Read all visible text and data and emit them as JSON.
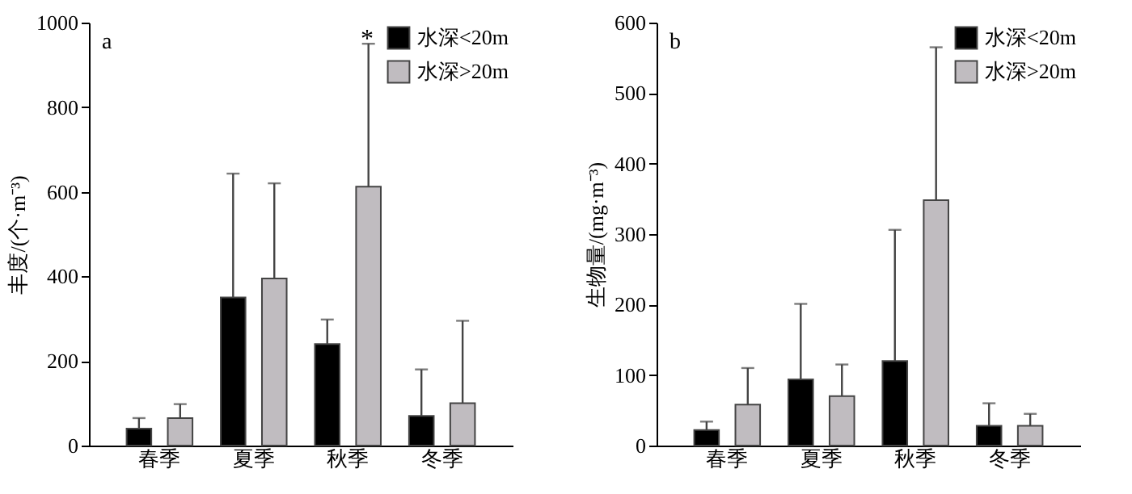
{
  "chart_data": [
    {
      "type": "bar",
      "title": "a",
      "categories": [
        "春季",
        "夏季",
        "秋季",
        "冬季"
      ],
      "ylabel": "丰度/(个·m⁻³)",
      "ylim": [
        0,
        1000
      ],
      "yticks": [
        0,
        200,
        400,
        600,
        800,
        1000
      ],
      "legend": "top right",
      "grid": false,
      "series": [
        {
          "name": "水深<20m",
          "color": "#000000",
          "values": [
            40,
            350,
            240,
            70
          ],
          "errors": [
            [
              40,
              65
            ],
            [
              350,
              643
            ],
            [
              240,
              298
            ],
            [
              70,
              180
            ]
          ]
        },
        {
          "name": "水深>20m",
          "color": "#c0bcc0",
          "values": [
            65,
            395,
            612,
            100
          ],
          "errors": [
            [
              65,
              98
            ],
            [
              395,
              620
            ],
            [
              612,
              950
            ],
            [
              100,
              295
            ]
          ]
        }
      ],
      "annotations": [
        "*"
      ]
    },
    {
      "type": "bar",
      "title": "b",
      "categories": [
        "春季",
        "夏季",
        "秋季",
        "冬季"
      ],
      "ylabel": "生物量/(mg·m⁻³)",
      "ylim": [
        0,
        600
      ],
      "yticks": [
        0,
        100,
        200,
        300,
        400,
        500,
        600
      ],
      "legend": "top right",
      "grid": false,
      "series": [
        {
          "name": "水深<20m",
          "color": "#000000",
          "values": [
            22,
            94,
            120,
            28
          ],
          "errors": [
            [
              22,
              34
            ],
            [
              94,
              201
            ],
            [
              120,
              306
            ],
            [
              28,
              60
            ]
          ]
        },
        {
          "name": "水深>20m",
          "color": "#c0bcc0",
          "values": [
            58,
            70,
            348,
            28
          ],
          "errors": [
            [
              58,
              110
            ],
            [
              70,
              115
            ],
            [
              348,
              565
            ],
            [
              28,
              45
            ]
          ]
        }
      ]
    }
  ]
}
